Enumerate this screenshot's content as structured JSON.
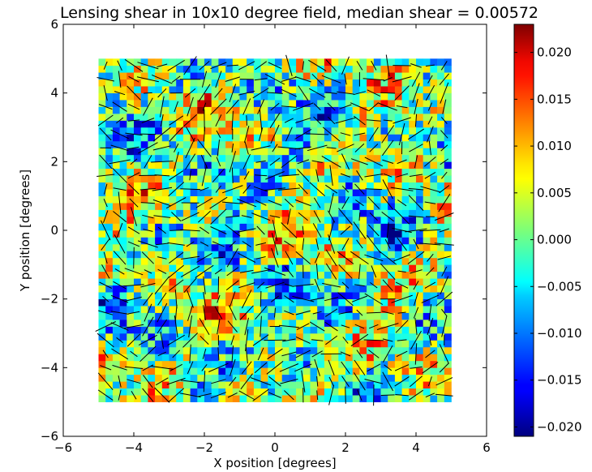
{
  "chart_data": {
    "type": "heatmap",
    "title": "Lensing shear in 10x10 degree field, median shear = 0.00572",
    "xlabel": "X position [degrees]",
    "ylabel": "Y position [degrees]",
    "xlim": [
      -6,
      6
    ],
    "ylim": [
      -6,
      6
    ],
    "data_extent": [
      -5,
      5,
      -5,
      5
    ],
    "grid_cells": 50,
    "grid": false,
    "colormap": "jet",
    "color_range": [
      -0.021,
      0.023
    ],
    "median_shear": 0.00572,
    "overlay": "black whisker sticks showing local shear orientation",
    "xticks": [
      -6,
      -4,
      -2,
      0,
      2,
      4,
      6
    ],
    "yticks": [
      -6,
      -4,
      -2,
      0,
      2,
      4,
      6
    ],
    "xtick_labels": [
      "−6",
      "−4",
      "−2",
      "0",
      "2",
      "4",
      "6"
    ],
    "ytick_labels": [
      "−6",
      "−4",
      "−2",
      "0",
      "2",
      "4",
      "6"
    ],
    "colorbar": {
      "ticks": [
        0.02,
        0.015,
        0.01,
        0.005,
        0.0,
        -0.005,
        -0.01,
        -0.015,
        -0.02
      ],
      "tick_labels": [
        "0.020",
        "0.015",
        "0.010",
        "0.005",
        "0.000",
        "−0.005",
        "−0.010",
        "−0.015",
        "−0.020"
      ]
    }
  }
}
